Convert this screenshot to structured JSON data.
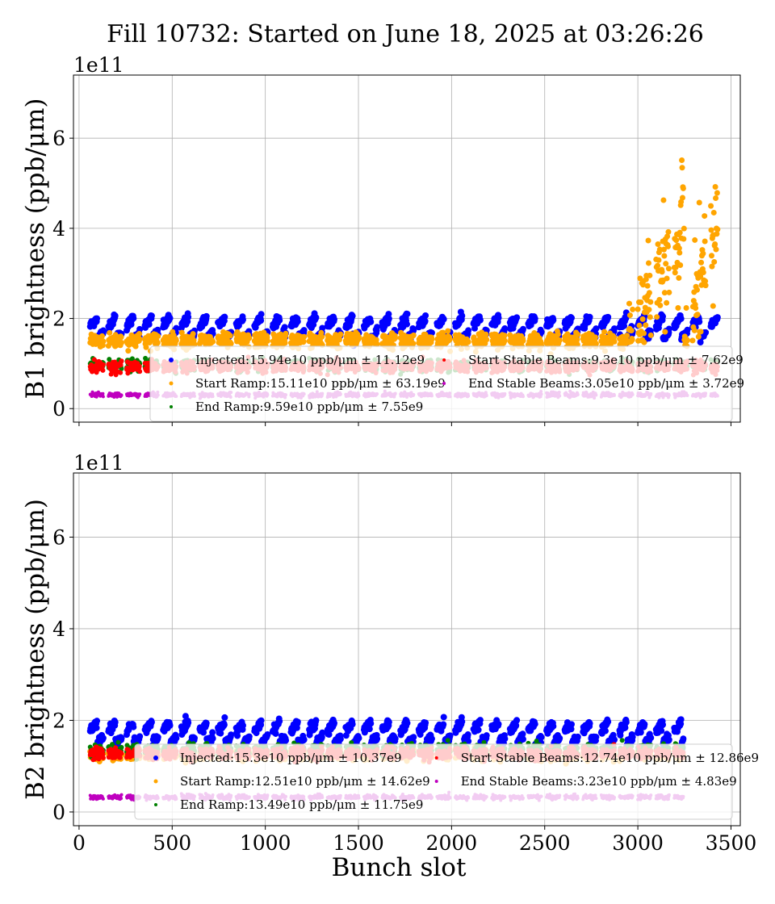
{
  "title": "Fill 10732: Started on June 18, 2025 at 03:26:26",
  "chart_data": [
    {
      "type": "scatter",
      "panel": "top",
      "ylabel": "B1 brightness (ppb/μm)",
      "y_exponent": "1e11",
      "xlim": [
        -30,
        3550
      ],
      "ylim": [
        -0.3,
        7.4
      ],
      "y_ticks": [
        0,
        2,
        4,
        6
      ],
      "x_ticks": [
        0,
        500,
        1000,
        1500,
        2000,
        2500,
        3000,
        3500
      ],
      "grid": true,
      "legend_position": "lower-right",
      "series": [
        {
          "name": "Injected:15.94e10 ppb/μm ± 11.12e9",
          "color": "#0000ff",
          "mean": 1.594,
          "std": 0.1112,
          "marker_size": 4
        },
        {
          "name": "Start Ramp:15.11e10 ppb/μm ± 63.19e9",
          "color": "#ffa500",
          "mean": 1.511,
          "std": 0.6319,
          "marker_size": 3.5
        },
        {
          "name": "End Ramp:9.59e10 ppb/μm ± 7.55e9",
          "color": "#008000",
          "mean": 0.959,
          "std": 0.0755,
          "marker_size": 3
        },
        {
          "name": "Start Stable Beams:9.3e10 ppb/μm ± 7.62e9",
          "color": "#ff0000",
          "mean": 0.93,
          "std": 0.0762,
          "marker_size": 3
        },
        {
          "name": "End Stable Beams:3.05e10 ppb/μm ± 3.72e9",
          "color": "#bf00bf",
          "mean": 0.305,
          "std": 0.0372,
          "marker_size": 2
        }
      ]
    },
    {
      "type": "scatter",
      "panel": "bottom",
      "xlabel": "Bunch slot",
      "ylabel": "B2 brightness (ppb/μm)",
      "y_exponent": "1e11",
      "xlim": [
        -30,
        3550
      ],
      "ylim": [
        -0.3,
        7.4
      ],
      "y_ticks": [
        0,
        2,
        4,
        6
      ],
      "x_ticks": [
        0,
        500,
        1000,
        1500,
        2000,
        2500,
        3000,
        3500
      ],
      "grid": true,
      "legend_position": "lower-right",
      "series": [
        {
          "name": "Injected:15.3e10 ppb/μm ± 10.37e9",
          "color": "#0000ff",
          "mean": 1.53,
          "std": 0.1037,
          "marker_size": 4
        },
        {
          "name": "Start Ramp:12.51e10 ppb/μm ± 14.62e9",
          "color": "#ffa500",
          "mean": 1.251,
          "std": 0.1462,
          "marker_size": 3.5
        },
        {
          "name": "End Ramp:13.49e10 ppb/μm ± 11.75e9",
          "color": "#008000",
          "mean": 1.349,
          "std": 0.1175,
          "marker_size": 3
        },
        {
          "name": "Start Stable Beams:12.74e10 ppb/μm ± 12.86e9",
          "color": "#ff0000",
          "mean": 1.274,
          "std": 0.1286,
          "marker_size": 3
        },
        {
          "name": "End Stable Beams:3.23e10 ppb/μm ± 4.83e9",
          "color": "#bf00bf",
          "mean": 0.323,
          "std": 0.0483,
          "marker_size": 2
        }
      ]
    }
  ]
}
